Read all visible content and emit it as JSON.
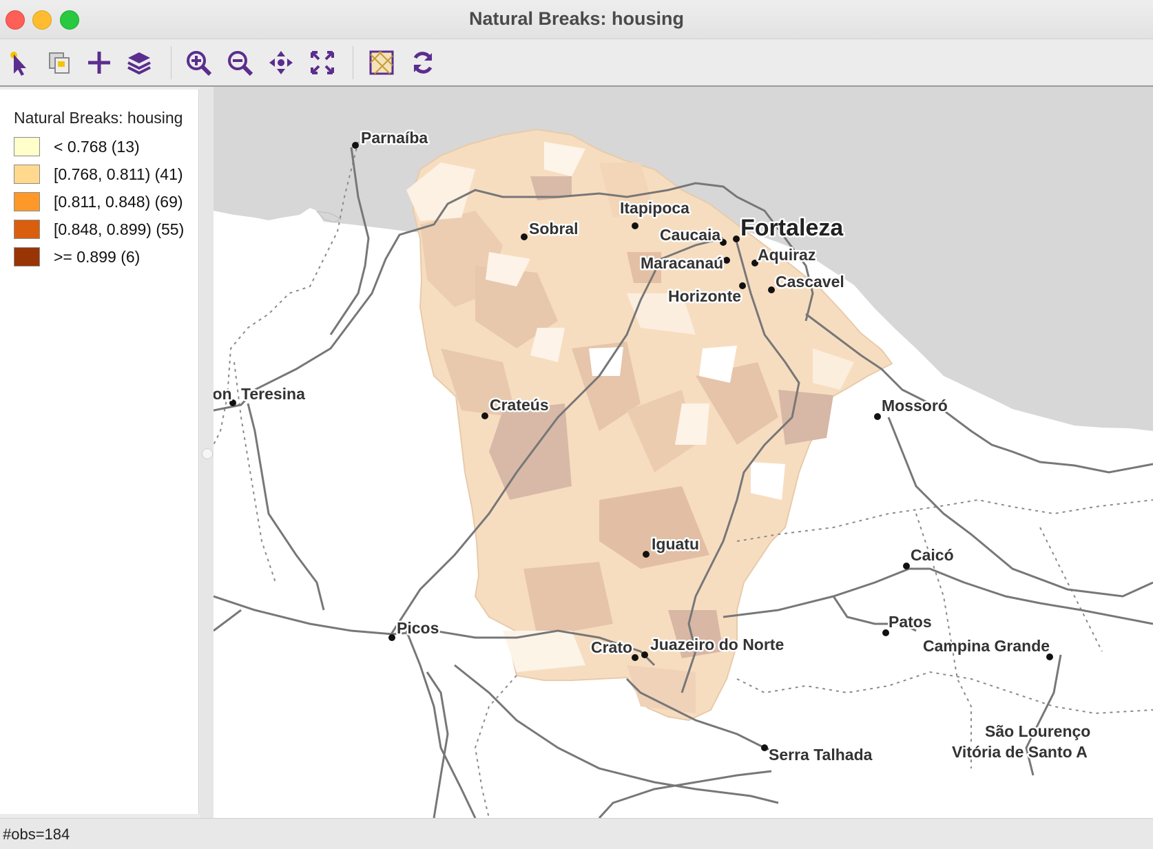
{
  "window": {
    "title": "Natural Breaks: housing"
  },
  "toolbar": {
    "buttons": [
      {
        "name": "select-tool",
        "icon": "pointer-icon"
      },
      {
        "name": "copy-image",
        "icon": "copy-icon"
      },
      {
        "name": "add-layer",
        "icon": "plus-icon"
      },
      {
        "name": "layers",
        "icon": "layers-icon"
      },
      {
        "name": "zoom-in",
        "icon": "zoom-in-icon"
      },
      {
        "name": "zoom-out",
        "icon": "zoom-out-icon"
      },
      {
        "name": "pan",
        "icon": "pan-icon"
      },
      {
        "name": "full-extent",
        "icon": "expand-icon"
      },
      {
        "name": "basemap",
        "icon": "basemap-icon"
      },
      {
        "name": "refresh",
        "icon": "refresh-icon"
      }
    ]
  },
  "legend": {
    "title": "Natural Breaks: housing",
    "items": [
      {
        "label": "< 0.768 (13)",
        "color": "#ffffcc"
      },
      {
        "label": "[0.768, 0.811) (41)",
        "color": "#fed98e"
      },
      {
        "label": "[0.811, 0.848) (69)",
        "color": "#fe9929"
      },
      {
        "label": "[0.848, 0.899) (55)",
        "color": "#d95f0e"
      },
      {
        "label": ">= 0.899 (6)",
        "color": "#993404"
      }
    ]
  },
  "map": {
    "cities": [
      "Parnaíba",
      "Itapipoca",
      "Sobral",
      "Caucaia",
      "Fortaleza",
      "Maracanaú",
      "Aquiraz",
      "Cascavel",
      "Horizonte",
      "mon",
      "Teresina",
      "Crateús",
      "Mossoró",
      "Iguatu",
      "Caicó",
      "Picos",
      "Patos",
      "Crato",
      "Juazeiro do Norte",
      "Campina Grande",
      "São Lourenço",
      "Serra Talhada",
      "Vitória de Santo A"
    ]
  },
  "status": {
    "text": "#obs=184"
  }
}
